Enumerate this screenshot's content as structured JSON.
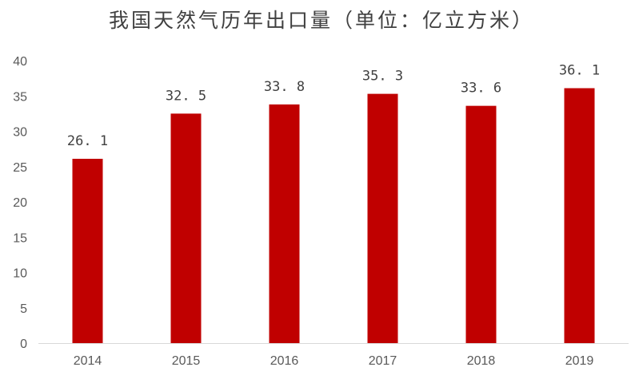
{
  "chart_data": {
    "type": "bar",
    "title": "我国天然气历年出口量（单位：亿立方米）",
    "categories": [
      "2014",
      "2015",
      "2016",
      "2017",
      "2018",
      "2019"
    ],
    "values": [
      26.1,
      32.5,
      33.8,
      35.3,
      33.6,
      36.1
    ],
    "data_labels": [
      "26. 1",
      "32. 5",
      "33. 8",
      "35. 3",
      "33. 6",
      "36. 1"
    ],
    "xlabel": "",
    "ylabel": "",
    "ylim": [
      0,
      40
    ],
    "yticks": [
      "0",
      "5",
      "10",
      "15",
      "20",
      "25",
      "30",
      "35",
      "40"
    ],
    "ytick_values": [
      0,
      5,
      10,
      15,
      20,
      25,
      30,
      35,
      40
    ],
    "grid": false,
    "legend": "none",
    "bar_color": "#C00000"
  }
}
